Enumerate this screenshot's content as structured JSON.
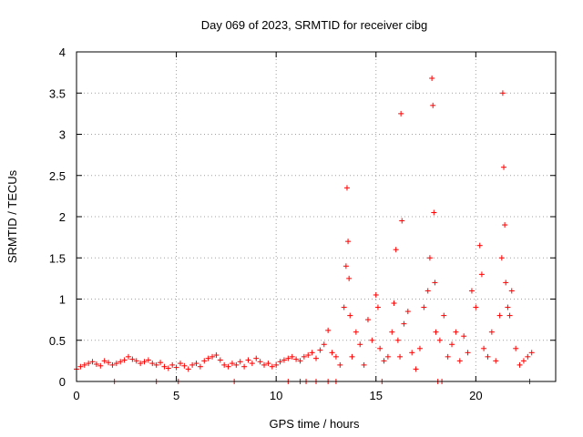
{
  "chart_data": {
    "type": "scatter",
    "title": "Day 069 of 2023, SRMTID for receiver cibg",
    "xlabel": "GPS time / hours",
    "ylabel": "SRMTID / TECUs",
    "xlim": [
      0,
      24
    ],
    "ylim": [
      0,
      4
    ],
    "xticks": [
      0,
      5,
      10,
      15,
      20
    ],
    "xtick_labels": [
      "0",
      "5",
      "10",
      "15",
      "20"
    ],
    "yticks": [
      0,
      0.5,
      1,
      1.5,
      2,
      2.5,
      3,
      3.5,
      4
    ],
    "ytick_labels": [
      "0",
      "0.5",
      "1",
      "1.5",
      "2",
      "2.5",
      "3",
      "3.5",
      "4"
    ],
    "grid": true,
    "marker": "+",
    "color": "#ff0000",
    "series": [
      {
        "name": "SRMTID",
        "x": [
          0.0,
          0.2,
          0.4,
          0.6,
          0.8,
          1.0,
          1.2,
          1.4,
          1.6,
          1.8,
          2.0,
          2.2,
          2.4,
          2.6,
          2.8,
          3.0,
          3.2,
          3.4,
          3.6,
          3.8,
          4.0,
          4.2,
          4.4,
          4.6,
          4.8,
          5.0,
          5.2,
          5.4,
          5.6,
          5.8,
          6.0,
          6.2,
          6.4,
          6.6,
          6.8,
          7.0,
          7.2,
          7.4,
          7.6,
          7.8,
          8.0,
          8.2,
          8.4,
          8.6,
          8.8,
          9.0,
          9.2,
          9.4,
          9.6,
          9.8,
          10.0,
          10.2,
          10.4,
          10.6,
          10.8,
          11.0,
          11.2,
          11.4,
          11.6,
          11.8,
          12.0,
          12.2,
          12.4,
          12.6,
          12.8,
          13.0,
          13.2,
          13.4,
          13.5,
          13.55,
          13.6,
          13.65,
          13.7,
          13.8,
          14.0,
          14.2,
          14.4,
          14.6,
          14.8,
          15.0,
          15.1,
          15.2,
          15.4,
          15.6,
          15.8,
          15.9,
          16.0,
          16.1,
          16.2,
          16.25,
          16.3,
          16.4,
          16.6,
          16.8,
          17.0,
          17.2,
          17.4,
          17.6,
          17.7,
          17.8,
          17.85,
          17.9,
          17.95,
          18.0,
          18.2,
          18.4,
          18.6,
          18.8,
          19.0,
          19.2,
          19.4,
          19.6,
          19.8,
          20.0,
          20.2,
          20.3,
          20.4,
          20.6,
          20.8,
          21.0,
          21.2,
          21.3,
          21.35,
          21.4,
          21.45,
          21.5,
          21.6,
          21.7,
          21.8,
          22.0,
          22.2,
          22.4,
          22.6,
          22.8,
          1.9,
          4.0,
          5.1,
          7.9,
          10.6,
          11.2,
          11.5,
          12.0,
          12.6,
          13.0,
          15.3,
          18.1,
          18.3,
          22.7
        ],
        "y": [
          0.15,
          0.18,
          0.2,
          0.22,
          0.24,
          0.21,
          0.19,
          0.25,
          0.23,
          0.2,
          0.22,
          0.24,
          0.26,
          0.3,
          0.27,
          0.25,
          0.22,
          0.24,
          0.26,
          0.22,
          0.2,
          0.23,
          0.18,
          0.16,
          0.2,
          0.17,
          0.22,
          0.19,
          0.15,
          0.2,
          0.22,
          0.18,
          0.25,
          0.28,
          0.3,
          0.32,
          0.26,
          0.2,
          0.18,
          0.22,
          0.2,
          0.24,
          0.18,
          0.26,
          0.22,
          0.28,
          0.24,
          0.2,
          0.22,
          0.18,
          0.2,
          0.24,
          0.26,
          0.28,
          0.3,
          0.27,
          0.25,
          0.3,
          0.32,
          0.35,
          0.28,
          0.38,
          0.45,
          0.62,
          0.35,
          0.3,
          0.2,
          0.9,
          1.4,
          2.35,
          1.7,
          1.25,
          0.8,
          0.3,
          0.6,
          0.45,
          0.2,
          0.75,
          0.5,
          1.05,
          0.9,
          0.4,
          0.25,
          0.3,
          0.6,
          0.95,
          1.6,
          0.5,
          0.3,
          3.25,
          1.95,
          0.7,
          0.85,
          0.35,
          0.15,
          0.4,
          0.9,
          1.1,
          1.5,
          3.68,
          3.35,
          2.05,
          1.2,
          0.6,
          0.5,
          0.8,
          0.3,
          0.45,
          0.6,
          0.25,
          0.55,
          0.35,
          1.1,
          0.9,
          1.65,
          1.3,
          0.4,
          0.3,
          0.6,
          0.25,
          0.8,
          1.5,
          3.5,
          2.6,
          1.9,
          1.2,
          0.9,
          0.8,
          1.1,
          0.4,
          0.2,
          0.25,
          0.3,
          0.35,
          0.0,
          0.0,
          0.0,
          0.0,
          0.0,
          0.0,
          0.0,
          0.0,
          0.0,
          0.0,
          0.0,
          0.0,
          0.0,
          0.0
        ]
      }
    ]
  }
}
